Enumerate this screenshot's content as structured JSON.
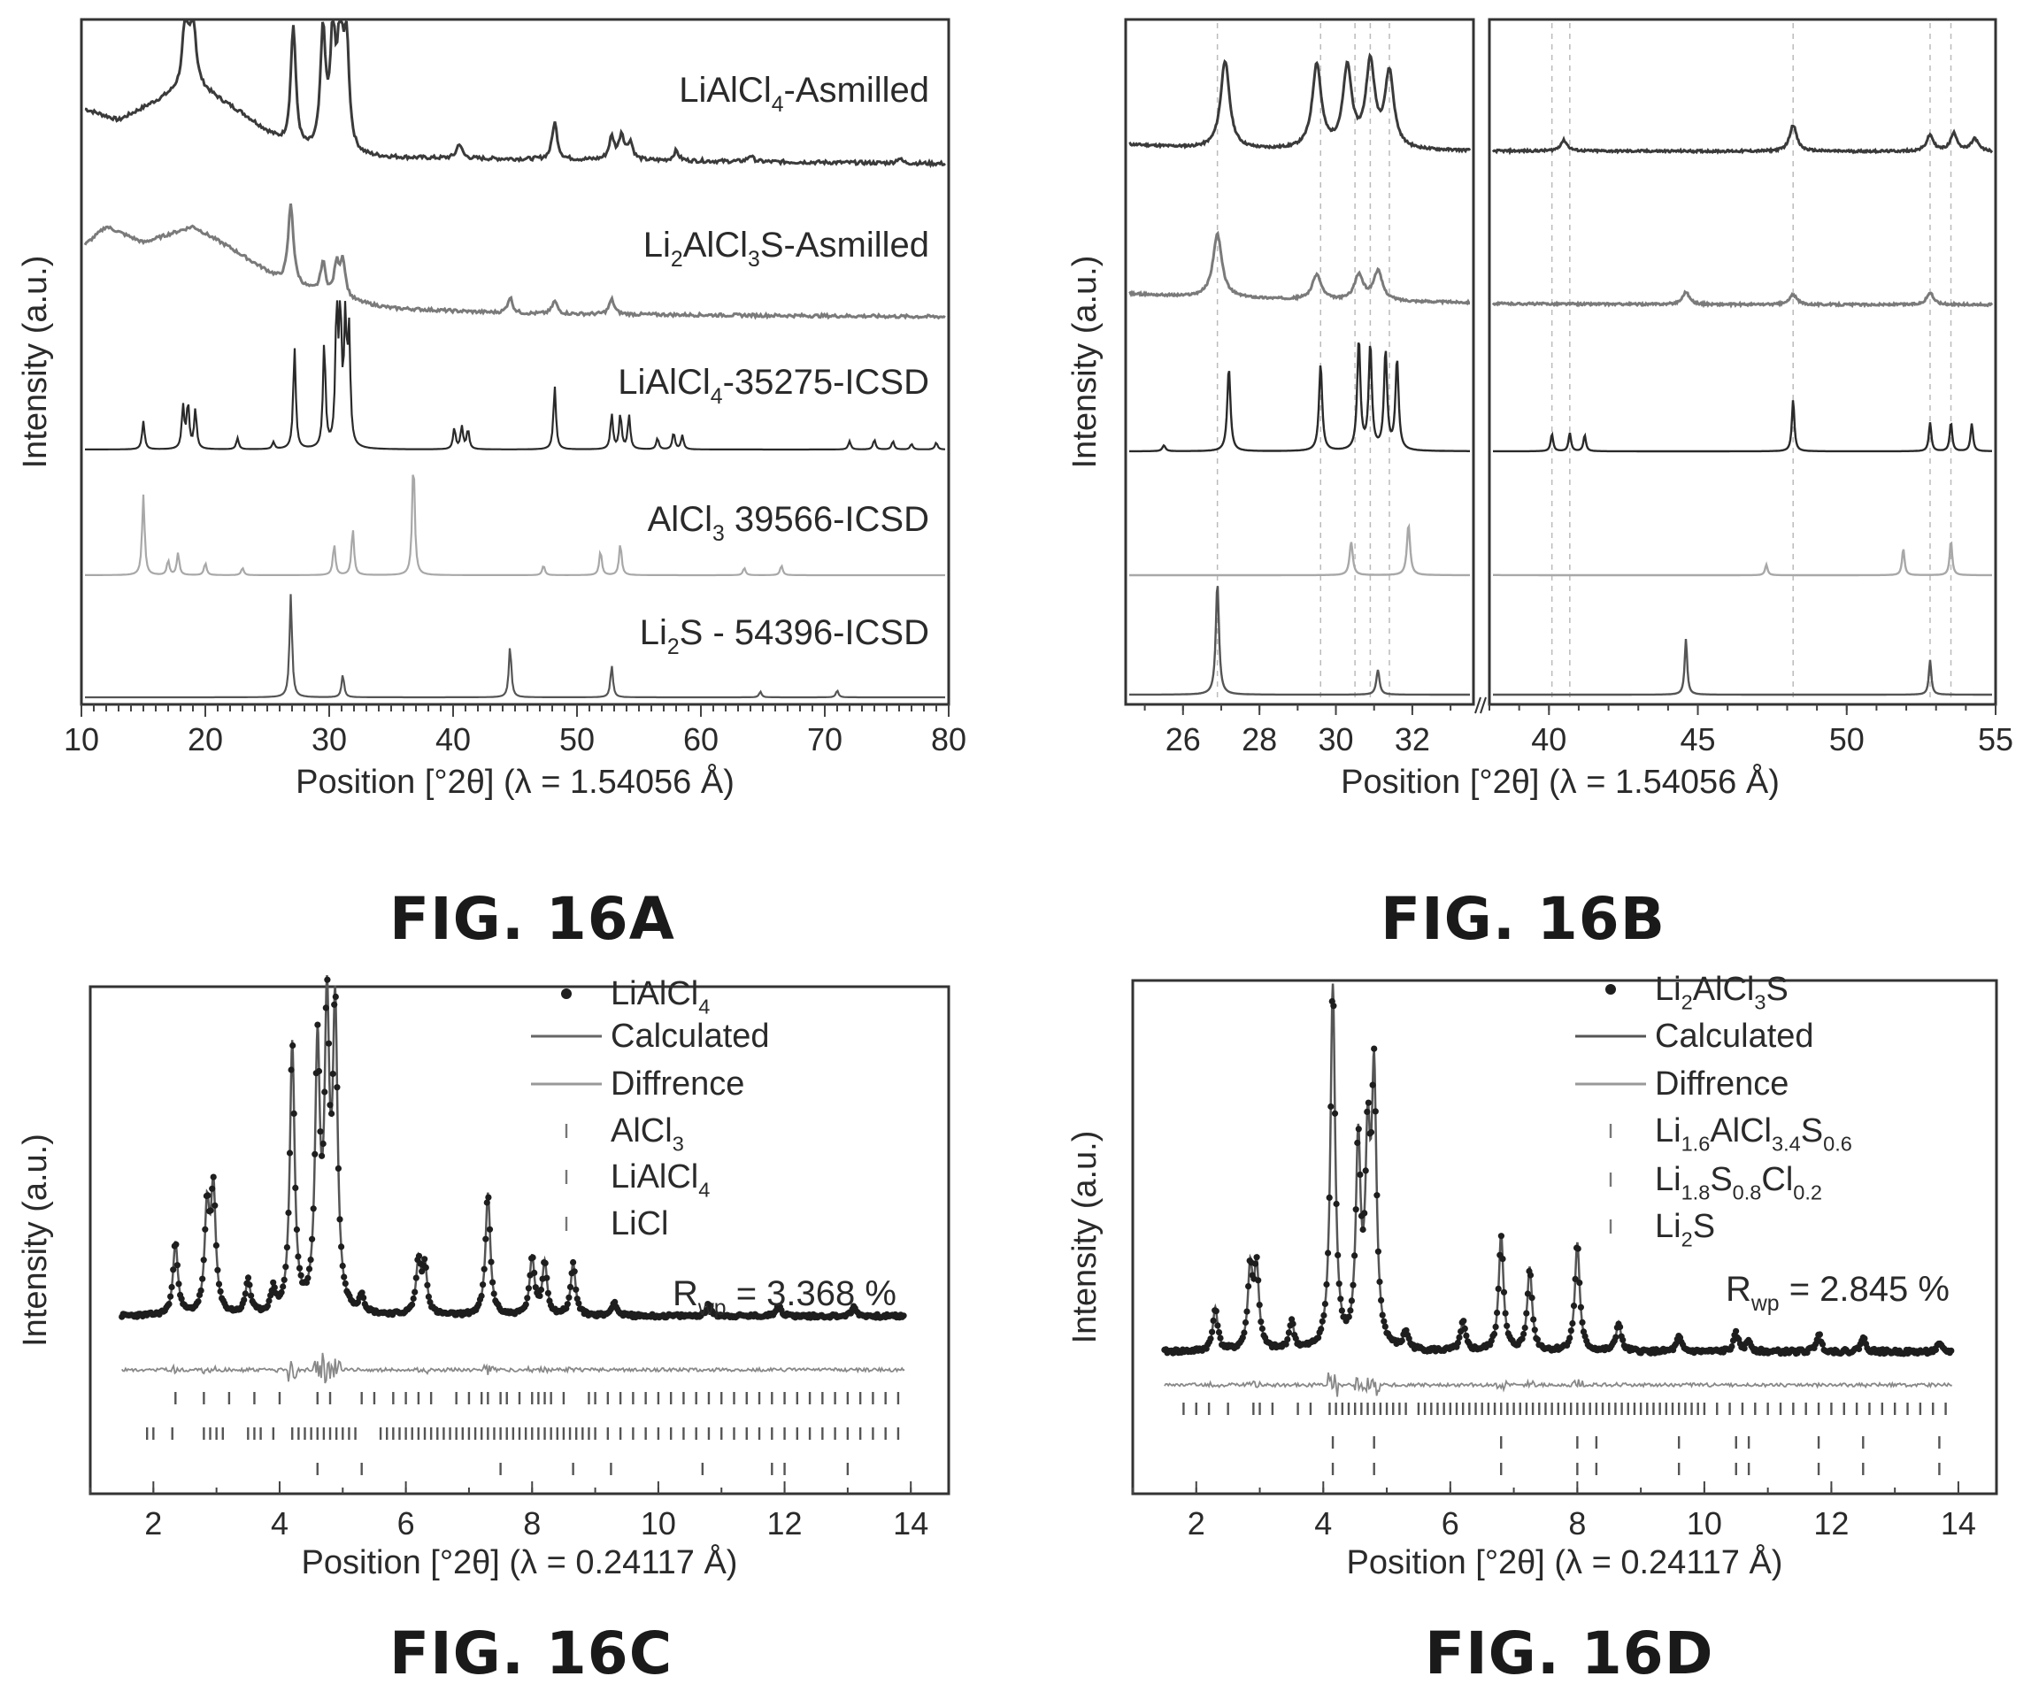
{
  "figures": {
    "a": "FIG. 16A",
    "b": "FIG. 16B",
    "c": "FIG. 16C",
    "d": "FIG. 16D"
  },
  "chart_data": [
    {
      "id": "16A",
      "type": "line",
      "title": "",
      "xlabel": "Position [°2θ] (λ = 1.54056 Å)",
      "ylabel": "Intensity (a.u.)",
      "xlim": [
        10,
        80
      ],
      "xticks": [
        10,
        20,
        30,
        40,
        50,
        60,
        70,
        80
      ],
      "stacked": true,
      "series": [
        {
          "name": "LiAlCl4-Asmilled",
          "label_main": "LiAlCl",
          "label_sub": "4",
          "label_tail": "-Asmilled",
          "color": "#3a3a3a",
          "hump": [
            [
              10,
              0.45
            ],
            [
              13,
              0.35
            ],
            [
              16,
              0.5
            ],
            [
              19,
              0.65
            ],
            [
              23,
              0.4
            ],
            [
              27,
              0.1
            ],
            [
              32,
              0.05
            ],
            [
              80,
              0.0
            ]
          ],
          "peaks": [
            [
              18.4,
              0.6
            ],
            [
              19.0,
              0.55
            ],
            [
              27.1,
              1.0
            ],
            [
              29.5,
              0.95
            ],
            [
              30.3,
              0.9
            ],
            [
              30.9,
              0.95
            ],
            [
              31.4,
              0.85
            ],
            [
              40.5,
              0.12
            ],
            [
              48.2,
              0.3
            ],
            [
              52.8,
              0.18
            ],
            [
              53.6,
              0.2
            ],
            [
              54.3,
              0.14
            ],
            [
              58.0,
              0.08
            ],
            [
              64.0,
              0.05
            ],
            [
              76.0,
              0.04
            ]
          ]
        },
        {
          "name": "Li2AlCl3S-Asmilled",
          "label_main": "Li",
          "label_sub": "2",
          "label_tail": "AlCl",
          "label_sub2": "3",
          "label_tail2": "S-Asmilled",
          "color": "#7a7a7a",
          "hump": [
            [
              10,
              0.65
            ],
            [
              12,
              0.85
            ],
            [
              15,
              0.7
            ],
            [
              19,
              0.85
            ],
            [
              22,
              0.65
            ],
            [
              26,
              0.35
            ],
            [
              30,
              0.18
            ],
            [
              35,
              0.08
            ],
            [
              45,
              0.03
            ],
            [
              80,
              0.0
            ]
          ],
          "peaks": [
            [
              26.9,
              0.75
            ],
            [
              29.5,
              0.3
            ],
            [
              30.6,
              0.3
            ],
            [
              31.1,
              0.35
            ],
            [
              44.6,
              0.15
            ],
            [
              48.2,
              0.12
            ],
            [
              52.8,
              0.14
            ]
          ]
        },
        {
          "name": "LiAlCl4-35275-ICSD",
          "label_main": "LiAlCl",
          "label_sub": "4",
          "label_tail": "-35275-ICSD",
          "color": "#2a2a2a",
          "hump": [],
          "peaks": [
            [
              15.0,
              0.2
            ],
            [
              18.2,
              0.3
            ],
            [
              18.6,
              0.32
            ],
            [
              19.2,
              0.28
            ],
            [
              22.6,
              0.08
            ],
            [
              25.5,
              0.05
            ],
            [
              27.2,
              0.72
            ],
            [
              29.6,
              0.75
            ],
            [
              30.6,
              0.95
            ],
            [
              30.9,
              0.9
            ],
            [
              31.3,
              0.85
            ],
            [
              31.6,
              0.78
            ],
            [
              40.1,
              0.15
            ],
            [
              40.7,
              0.16
            ],
            [
              41.2,
              0.14
            ],
            [
              48.2,
              0.45
            ],
            [
              52.8,
              0.25
            ],
            [
              53.5,
              0.25
            ],
            [
              54.2,
              0.24
            ],
            [
              56.5,
              0.08
            ],
            [
              57.8,
              0.12
            ],
            [
              58.5,
              0.1
            ],
            [
              72.0,
              0.06
            ],
            [
              74.0,
              0.07
            ],
            [
              75.5,
              0.06
            ],
            [
              77.0,
              0.04
            ],
            [
              79.0,
              0.05
            ]
          ]
        },
        {
          "name": "AlCl3 39566-ICSD",
          "label_main": "AlCl",
          "label_sub": "3",
          "label_tail": " 39566-ICSD",
          "color": "#a8a8a8",
          "hump": [],
          "peaks": [
            [
              15.0,
              0.65
            ],
            [
              17.0,
              0.12
            ],
            [
              17.8,
              0.18
            ],
            [
              20.0,
              0.1
            ],
            [
              23.0,
              0.06
            ],
            [
              30.4,
              0.25
            ],
            [
              31.9,
              0.38
            ],
            [
              36.8,
              0.95
            ],
            [
              47.3,
              0.08
            ],
            [
              51.9,
              0.2
            ],
            [
              53.5,
              0.26
            ],
            [
              63.5,
              0.06
            ],
            [
              66.5,
              0.08
            ]
          ]
        },
        {
          "name": "Li2S - 54396-ICSD",
          "label_main": "Li",
          "label_sub": "2",
          "label_tail": "S - 54396-ICSD",
          "color": "#555555",
          "hump": [],
          "peaks": [
            [
              26.9,
              0.9
            ],
            [
              31.1,
              0.2
            ],
            [
              44.6,
              0.45
            ],
            [
              52.8,
              0.28
            ],
            [
              64.8,
              0.05
            ],
            [
              71.0,
              0.06
            ]
          ]
        }
      ]
    },
    {
      "id": "16B",
      "type": "line",
      "title": "",
      "xlabel": "Position [°2θ] (λ = 1.54056 Å)",
      "ylabel": "Intensity (a.u.)",
      "xlim": [
        24.5,
        55
      ],
      "axis_break": [
        33.6,
        38
      ],
      "xticks": [
        26,
        28,
        30,
        32,
        40,
        45,
        50,
        55
      ],
      "reference_lines": [
        26.9,
        29.6,
        30.5,
        30.9,
        31.4,
        40.1,
        40.7,
        48.2,
        52.8,
        53.5
      ],
      "series_ref": "same five series as 16A, top to bottom"
    },
    {
      "id": "16C",
      "type": "scatter",
      "title": "",
      "xlabel": "Position [°2θ] (λ = 0.24117 Å)",
      "ylabel": "Intensity (a.u.)",
      "xlim": [
        1.0,
        14.6
      ],
      "xticks": [
        2,
        4,
        6,
        8,
        10,
        12,
        14
      ],
      "annotation": "R",
      "annotation_sub": "wp",
      "annotation_tail": " = 3.368 %",
      "legend": [
        {
          "kind": "dot",
          "main": "LiAlCl",
          "sub": "4",
          "tail": ""
        },
        {
          "kind": "line",
          "main": "Calculated",
          "sub": "",
          "tail": ""
        },
        {
          "kind": "line",
          "main": "Diffrence",
          "sub": "",
          "tail": ""
        },
        {
          "kind": "tick",
          "main": "AlCl",
          "sub": "3",
          "tail": ""
        },
        {
          "kind": "tick",
          "main": "LiAlCl",
          "sub": "4",
          "tail": ""
        },
        {
          "kind": "tick",
          "main": "LiCl",
          "sub": "",
          "tail": ""
        }
      ],
      "peaks": [
        [
          2.35,
          0.25
        ],
        [
          2.85,
          0.35
        ],
        [
          2.95,
          0.42
        ],
        [
          3.5,
          0.12
        ],
        [
          3.9,
          0.08
        ],
        [
          4.2,
          0.92
        ],
        [
          4.6,
          0.88
        ],
        [
          4.75,
          0.98
        ],
        [
          4.88,
          1.0
        ],
        [
          5.3,
          0.06
        ],
        [
          6.2,
          0.18
        ],
        [
          6.3,
          0.16
        ],
        [
          7.3,
          0.42
        ],
        [
          8.0,
          0.2
        ],
        [
          8.2,
          0.18
        ],
        [
          8.65,
          0.18
        ],
        [
          9.3,
          0.05
        ],
        [
          10.8,
          0.04
        ],
        [
          11.9,
          0.04
        ],
        [
          13.1,
          0.03
        ]
      ],
      "tick_rows": [
        [
          2.35,
          2.8,
          3.2,
          3.6,
          4.0,
          4.6,
          4.8,
          5.3,
          5.5,
          5.8,
          6.0,
          6.2,
          6.4,
          6.8,
          7.0,
          7.2,
          7.3,
          7.5,
          7.6,
          7.8,
          8.0,
          8.1,
          8.2,
          8.3,
          8.5,
          8.9,
          9.0,
          9.2,
          9.4,
          9.6,
          9.8,
          10.0,
          10.2,
          10.4,
          10.6,
          10.8,
          11.0,
          11.2,
          11.4,
          11.6,
          11.8,
          12.0,
          12.2,
          12.4,
          12.6,
          12.8,
          13.0,
          13.2,
          13.4,
          13.6,
          13.8
        ],
        [
          1.9,
          2.0,
          2.3,
          2.8,
          2.9,
          3.0,
          3.1,
          3.5,
          3.6,
          3.7,
          3.9,
          4.2,
          4.3,
          4.4,
          4.5,
          4.6,
          4.7,
          4.8,
          4.9,
          5.0,
          5.1,
          5.2,
          5.6,
          5.7,
          5.8,
          5.9,
          6.0,
          6.1,
          6.2,
          6.3,
          6.4,
          6.5,
          6.6,
          6.7,
          6.8,
          6.9,
          7.0,
          7.1,
          7.2,
          7.3,
          7.4,
          7.5,
          7.6,
          7.7,
          7.8,
          7.9,
          8.0,
          8.1,
          8.2,
          8.3,
          8.4,
          8.5,
          8.6,
          8.7,
          8.8,
          8.9,
          9.0,
          9.2,
          9.4,
          9.6,
          9.8,
          10.0,
          10.2,
          10.4,
          10.6,
          10.8,
          11.0,
          11.2,
          11.4,
          11.6,
          11.8,
          12.0,
          12.2,
          12.4,
          12.6,
          12.8,
          13.0,
          13.2,
          13.4,
          13.6,
          13.8
        ],
        [
          4.6,
          5.3,
          7.5,
          8.65,
          9.25,
          10.7,
          11.8,
          12.0,
          13.0
        ]
      ]
    },
    {
      "id": "16D",
      "type": "scatter",
      "title": "",
      "xlabel": "Position [°2θ] (λ = 0.24117 Å)",
      "ylabel": "Intensity (a.u.)",
      "xlim": [
        1.0,
        14.6
      ],
      "xticks": [
        2,
        4,
        6,
        8,
        10,
        12,
        14
      ],
      "annotation": "R",
      "annotation_sub": "wp",
      "annotation_tail": " = 2.845 %",
      "legend": [
        {
          "kind": "dot",
          "parts": [
            [
              "Li",
              ""
            ],
            [
              "2",
              "sub"
            ],
            [
              "AlCl",
              ""
            ],
            [
              "3",
              "sub"
            ],
            [
              "S",
              ""
            ]
          ]
        },
        {
          "kind": "line",
          "parts": [
            [
              "Calculated",
              ""
            ]
          ]
        },
        {
          "kind": "line",
          "parts": [
            [
              "Diffrence",
              ""
            ]
          ]
        },
        {
          "kind": "tick",
          "parts": [
            [
              "Li",
              ""
            ],
            [
              "1.6",
              "sub"
            ],
            [
              "AlCl",
              ""
            ],
            [
              "3.4",
              "sub"
            ],
            [
              "S",
              ""
            ],
            [
              "0.6",
              "sub"
            ]
          ]
        },
        {
          "kind": "tick",
          "parts": [
            [
              "Li",
              ""
            ],
            [
              "1.8",
              "sub"
            ],
            [
              "S",
              ""
            ],
            [
              "0.8",
              "sub"
            ],
            [
              "Cl",
              ""
            ],
            [
              "0.2",
              "sub"
            ]
          ]
        },
        {
          "kind": "tick",
          "parts": [
            [
              "Li",
              ""
            ],
            [
              "2",
              "sub"
            ],
            [
              "S",
              ""
            ]
          ]
        }
      ],
      "peaks": [
        [
          2.3,
          0.12
        ],
        [
          2.85,
          0.22
        ],
        [
          2.95,
          0.22
        ],
        [
          3.5,
          0.08
        ],
        [
          4.15,
          1.0
        ],
        [
          4.55,
          0.55
        ],
        [
          4.7,
          0.52
        ],
        [
          4.8,
          0.72
        ],
        [
          5.3,
          0.05
        ],
        [
          6.2,
          0.08
        ],
        [
          6.8,
          0.32
        ],
        [
          7.25,
          0.23
        ],
        [
          8.0,
          0.3
        ],
        [
          8.65,
          0.08
        ],
        [
          9.6,
          0.04
        ],
        [
          10.5,
          0.05
        ],
        [
          10.7,
          0.03
        ],
        [
          11.8,
          0.05
        ],
        [
          12.5,
          0.04
        ],
        [
          13.7,
          0.02
        ]
      ],
      "tick_rows": [
        [
          1.8,
          2.0,
          2.2,
          2.5,
          2.9,
          3.0,
          3.2,
          3.6,
          3.8,
          4.1,
          4.2,
          4.3,
          4.4,
          4.5,
          4.6,
          4.7,
          4.8,
          4.9,
          5.0,
          5.1,
          5.2,
          5.3,
          5.5,
          5.6,
          5.7,
          5.8,
          5.9,
          6.0,
          6.1,
          6.2,
          6.3,
          6.4,
          6.5,
          6.6,
          6.7,
          6.8,
          6.9,
          7.0,
          7.1,
          7.2,
          7.3,
          7.4,
          7.5,
          7.6,
          7.7,
          7.8,
          7.9,
          8.0,
          8.1,
          8.2,
          8.3,
          8.4,
          8.5,
          8.6,
          8.7,
          8.8,
          8.9,
          9.0,
          9.1,
          9.2,
          9.3,
          9.4,
          9.5,
          9.6,
          9.7,
          9.8,
          9.9,
          10.0,
          10.2,
          10.4,
          10.6,
          10.8,
          11.0,
          11.2,
          11.4,
          11.6,
          11.8,
          12.0,
          12.2,
          12.4,
          12.6,
          12.8,
          13.0,
          13.2,
          13.4,
          13.6,
          13.8
        ],
        [
          4.15,
          4.8,
          6.8,
          8.0,
          8.3,
          9.6,
          10.5,
          10.7,
          11.8,
          12.5,
          13.7
        ],
        [
          4.15,
          4.8,
          6.8,
          8.0,
          8.3,
          9.6,
          10.5,
          10.7,
          11.8,
          12.5,
          13.7
        ]
      ]
    }
  ]
}
